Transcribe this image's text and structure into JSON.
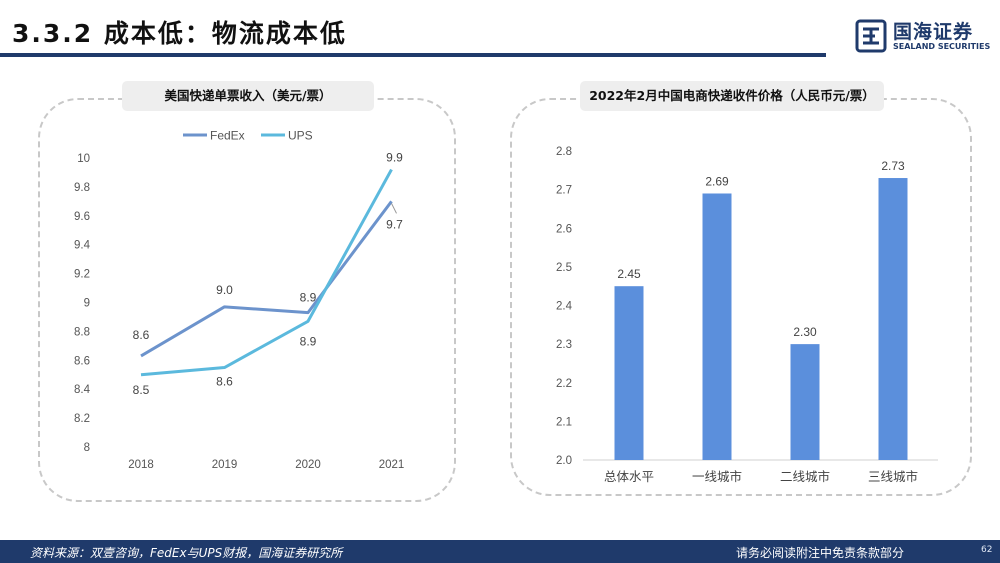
{
  "header": {
    "title": "3.3.2 成本低：物流成本低"
  },
  "logo": {
    "cn": "国海证券",
    "en": "SEALAND SECURITIES"
  },
  "footer": {
    "source": "资料来源：双壹咨询，FedEx与UPS财报，国海证券研究所",
    "disclaimer": "请务必阅读附注中免责条款部分",
    "page": "62"
  },
  "colors": {
    "fedex": "#6c93cc",
    "ups": "#5bb9dd",
    "bar": "#5b8fdc",
    "brand": "#1f3a6b"
  },
  "chart_data": [
    {
      "type": "line",
      "title": "美国快递单票收入（美元/票）",
      "x": [
        "2018",
        "2019",
        "2020",
        "2021"
      ],
      "ylim": [
        8,
        10
      ],
      "yticks": [
        "8",
        "8.2",
        "8.4",
        "8.6",
        "8.8",
        "9",
        "9.2",
        "9.4",
        "9.6",
        "9.8",
        "10"
      ],
      "legend_position": "top",
      "series": [
        {
          "name": "FedEx",
          "values": [
            8.63,
            8.97,
            8.93,
            9.7
          ],
          "labels": [
            "8.6",
            "9.0",
            "8.9",
            "9.7"
          ]
        },
        {
          "name": "UPS",
          "values": [
            8.5,
            8.55,
            8.87,
            9.92
          ],
          "labels": [
            "8.5",
            "8.6",
            "8.9",
            "9.9"
          ]
        }
      ]
    },
    {
      "type": "bar",
      "title": "2022年2月中国电商快递收件价格（人民币元/票）",
      "categories": [
        "总体水平",
        "一线城市",
        "二线城市",
        "三线城市"
      ],
      "values": [
        2.45,
        2.69,
        2.3,
        2.73
      ],
      "labels": [
        "2.45",
        "2.69",
        "2.30",
        "2.73"
      ],
      "ylim": [
        2.0,
        2.8
      ],
      "yticks": [
        "2.0",
        "2.1",
        "2.2",
        "2.3",
        "2.4",
        "2.5",
        "2.6",
        "2.7",
        "2.8"
      ]
    }
  ]
}
